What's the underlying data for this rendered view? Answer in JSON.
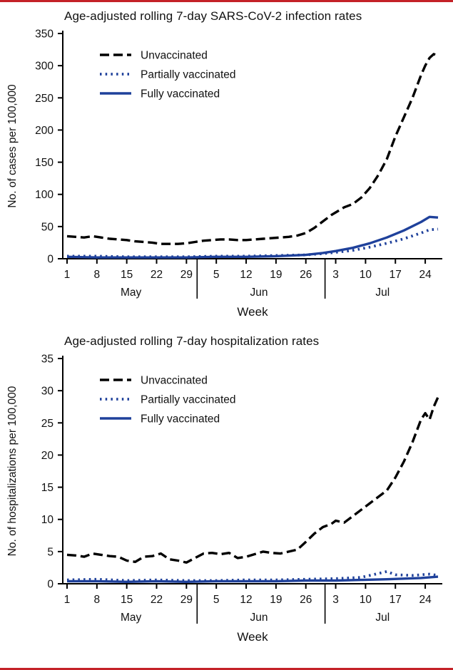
{
  "page": {
    "rule_color": "#c42127",
    "background": "#ffffff",
    "text_color": "#111111",
    "axis_color": "#000000"
  },
  "chart_data": [
    {
      "type": "line",
      "name": "infection-rates",
      "title": "Age-adjusted rolling 7-day SARS-CoV-2 infection rates",
      "xlabel": "Week",
      "ylabel": "No. of cases per 100,000",
      "xlim": [
        0,
        89
      ],
      "ylim": [
        0,
        350
      ],
      "grid": false,
      "legend_position": "top-left",
      "yticks": [
        0,
        50,
        100,
        150,
        200,
        250,
        300,
        350
      ],
      "xticks": [
        {
          "day": 1,
          "label": "1"
        },
        {
          "day": 8,
          "label": "8"
        },
        {
          "day": 15,
          "label": "15"
        },
        {
          "day": 22,
          "label": "22"
        },
        {
          "day": 29,
          "label": "29"
        },
        {
          "day": 36,
          "label": "5"
        },
        {
          "day": 43,
          "label": "12"
        },
        {
          "day": 50,
          "label": "19"
        },
        {
          "day": 57,
          "label": "26"
        },
        {
          "day": 64,
          "label": "3"
        },
        {
          "day": 71,
          "label": "10"
        },
        {
          "day": 78,
          "label": "17"
        },
        {
          "day": 85,
          "label": "24"
        }
      ],
      "months": [
        {
          "label": "May",
          "day": 16
        },
        {
          "label": "Jun",
          "day": 46
        },
        {
          "label": "Jul",
          "day": 75
        }
      ],
      "month_separators": [
        31.5,
        61.5
      ],
      "series": [
        {
          "id": "unvaccinated",
          "name": "Unvaccinated",
          "color": "#000000",
          "line_style": "dashed",
          "points": [
            [
              1,
              35
            ],
            [
              3,
              34
            ],
            [
              5,
              33
            ],
            [
              7,
              35
            ],
            [
              9,
              33
            ],
            [
              11,
              31
            ],
            [
              13,
              30
            ],
            [
              15,
              29
            ],
            [
              17,
              27
            ],
            [
              19,
              26
            ],
            [
              21,
              25
            ],
            [
              23,
              23
            ],
            [
              25,
              23
            ],
            [
              27,
              23
            ],
            [
              29,
              24
            ],
            [
              31,
              26
            ],
            [
              33,
              28
            ],
            [
              35,
              29
            ],
            [
              37,
              30
            ],
            [
              39,
              30
            ],
            [
              41,
              29
            ],
            [
              43,
              29
            ],
            [
              45,
              30
            ],
            [
              47,
              31
            ],
            [
              49,
              32
            ],
            [
              51,
              33
            ],
            [
              53,
              34
            ],
            [
              55,
              36
            ],
            [
              57,
              40
            ],
            [
              59,
              48
            ],
            [
              61,
              58
            ],
            [
              63,
              68
            ],
            [
              64,
              72
            ],
            [
              66,
              80
            ],
            [
              68,
              85
            ],
            [
              70,
              95
            ],
            [
              72,
              110
            ],
            [
              74,
              130
            ],
            [
              76,
              155
            ],
            [
              78,
              190
            ],
            [
              80,
              220
            ],
            [
              82,
              250
            ],
            [
              84,
              285
            ],
            [
              85,
              300
            ],
            [
              86,
              312
            ],
            [
              87,
              318
            ],
            [
              88,
              315
            ]
          ]
        },
        {
          "id": "partially-vaccinated",
          "name": "Partially vaccinated",
          "color": "#1f419b",
          "line_style": "dotted",
          "points": [
            [
              1,
              4
            ],
            [
              8,
              4
            ],
            [
              15,
              3
            ],
            [
              22,
              3
            ],
            [
              29,
              3
            ],
            [
              36,
              4
            ],
            [
              43,
              4
            ],
            [
              50,
              5
            ],
            [
              57,
              6
            ],
            [
              61,
              8
            ],
            [
              64,
              10
            ],
            [
              68,
              13
            ],
            [
              72,
              18
            ],
            [
              76,
              24
            ],
            [
              80,
              31
            ],
            [
              84,
              40
            ],
            [
              86,
              45
            ],
            [
              88,
              46
            ]
          ]
        },
        {
          "id": "fully-vaccinated",
          "name": "Fully vaccinated",
          "color": "#1f419b",
          "line_style": "solid",
          "points": [
            [
              1,
              3
            ],
            [
              8,
              2
            ],
            [
              15,
              2
            ],
            [
              22,
              2
            ],
            [
              29,
              2
            ],
            [
              36,
              3
            ],
            [
              43,
              3
            ],
            [
              50,
              4
            ],
            [
              57,
              6
            ],
            [
              61,
              9
            ],
            [
              64,
              12
            ],
            [
              68,
              17
            ],
            [
              72,
              24
            ],
            [
              76,
              33
            ],
            [
              80,
              44
            ],
            [
              84,
              57
            ],
            [
              86,
              65
            ],
            [
              88,
              64
            ]
          ]
        }
      ]
    },
    {
      "type": "line",
      "name": "hospitalization-rates",
      "title": "Age-adjusted rolling 7-day hospitalization rates",
      "xlabel": "Week",
      "ylabel": "No. of hospitalizations per 100,000",
      "xlim": [
        0,
        89
      ],
      "ylim": [
        0,
        35
      ],
      "grid": false,
      "legend_position": "top-left",
      "yticks": [
        0,
        5,
        10,
        15,
        20,
        25,
        30,
        35
      ],
      "xticks": [
        {
          "day": 1,
          "label": "1"
        },
        {
          "day": 8,
          "label": "8"
        },
        {
          "day": 15,
          "label": "15"
        },
        {
          "day": 22,
          "label": "22"
        },
        {
          "day": 29,
          "label": "29"
        },
        {
          "day": 36,
          "label": "5"
        },
        {
          "day": 43,
          "label": "12"
        },
        {
          "day": 50,
          "label": "19"
        },
        {
          "day": 57,
          "label": "26"
        },
        {
          "day": 64,
          "label": "3"
        },
        {
          "day": 71,
          "label": "10"
        },
        {
          "day": 78,
          "label": "17"
        },
        {
          "day": 85,
          "label": "24"
        }
      ],
      "months": [
        {
          "label": "May",
          "day": 16
        },
        {
          "label": "Jun",
          "day": 46
        },
        {
          "label": "Jul",
          "day": 75
        }
      ],
      "month_separators": [
        31.5,
        61.5
      ],
      "series": [
        {
          "id": "unvaccinated",
          "name": "Unvaccinated",
          "color": "#000000",
          "line_style": "dashed",
          "points": [
            [
              1,
              4.5
            ],
            [
              3,
              4.4
            ],
            [
              5,
              4.2
            ],
            [
              7,
              4.7
            ],
            [
              9,
              4.5
            ],
            [
              11,
              4.3
            ],
            [
              13,
              4.2
            ],
            [
              15,
              3.6
            ],
            [
              17,
              3.4
            ],
            [
              19,
              4.2
            ],
            [
              21,
              4.3
            ],
            [
              23,
              4.7
            ],
            [
              25,
              3.8
            ],
            [
              27,
              3.6
            ],
            [
              29,
              3.3
            ],
            [
              31,
              4.0
            ],
            [
              33,
              4.7
            ],
            [
              35,
              4.8
            ],
            [
              37,
              4.6
            ],
            [
              39,
              4.8
            ],
            [
              41,
              4.0
            ],
            [
              43,
              4.2
            ],
            [
              45,
              4.6
            ],
            [
              47,
              5.0
            ],
            [
              49,
              4.8
            ],
            [
              51,
              4.7
            ],
            [
              53,
              5.0
            ],
            [
              55,
              5.3
            ],
            [
              57,
              6.5
            ],
            [
              59,
              7.8
            ],
            [
              61,
              8.8
            ],
            [
              63,
              9.3
            ],
            [
              64,
              9.8
            ],
            [
              66,
              9.5
            ],
            [
              68,
              10.5
            ],
            [
              70,
              11.5
            ],
            [
              72,
              12.5
            ],
            [
              74,
              13.5
            ],
            [
              76,
              14.5
            ],
            [
              78,
              16.5
            ],
            [
              80,
              19.0
            ],
            [
              82,
              22.0
            ],
            [
              84,
              25.5
            ],
            [
              85,
              26.5
            ],
            [
              86,
              25.5
            ],
            [
              87,
              27.5
            ],
            [
              88,
              29.0
            ]
          ]
        },
        {
          "id": "partially-vaccinated",
          "name": "Partially vaccinated",
          "color": "#1f419b",
          "line_style": "dotted",
          "points": [
            [
              1,
              0.6
            ],
            [
              8,
              0.7
            ],
            [
              15,
              0.5
            ],
            [
              22,
              0.6
            ],
            [
              29,
              0.5
            ],
            [
              36,
              0.5
            ],
            [
              43,
              0.6
            ],
            [
              50,
              0.6
            ],
            [
              57,
              0.7
            ],
            [
              64,
              0.8
            ],
            [
              70,
              1.0
            ],
            [
              74,
              1.6
            ],
            [
              76,
              1.9
            ],
            [
              78,
              1.4
            ],
            [
              82,
              1.3
            ],
            [
              86,
              1.5
            ],
            [
              88,
              1.3
            ]
          ]
        },
        {
          "id": "fully-vaccinated",
          "name": "Fully vaccinated",
          "color": "#1f419b",
          "line_style": "solid",
          "points": [
            [
              1,
              0.4
            ],
            [
              8,
              0.4
            ],
            [
              15,
              0.3
            ],
            [
              22,
              0.4
            ],
            [
              29,
              0.3
            ],
            [
              36,
              0.4
            ],
            [
              43,
              0.4
            ],
            [
              50,
              0.4
            ],
            [
              57,
              0.5
            ],
            [
              64,
              0.5
            ],
            [
              70,
              0.6
            ],
            [
              76,
              0.7
            ],
            [
              80,
              0.8
            ],
            [
              84,
              0.9
            ],
            [
              88,
              1.1
            ]
          ]
        }
      ]
    }
  ]
}
